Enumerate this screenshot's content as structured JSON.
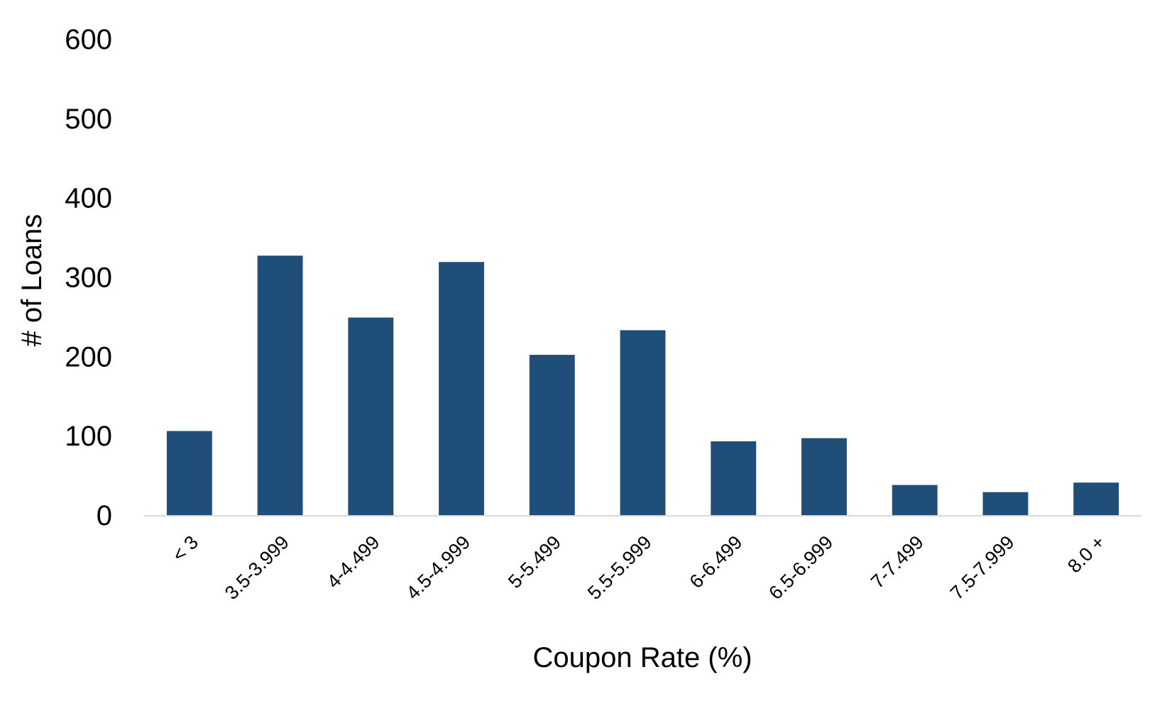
{
  "chart_data": {
    "type": "bar",
    "title": "",
    "xlabel": "Coupon Rate (%)",
    "ylabel": "# of Loans",
    "ylim": [
      0,
      600
    ],
    "yticks": [
      0,
      100,
      200,
      300,
      400,
      500,
      600
    ],
    "grid": false,
    "categories": [
      "< 3",
      "3.5-3.999",
      "4-4.499",
      "4.5-4.999",
      "5-5.499",
      "5.5-5.999",
      "6-6.499",
      "6.5-6.999",
      "7-7.499",
      "7.5-7.999",
      "8.0 +"
    ],
    "values": [
      106,
      327,
      249,
      319,
      202,
      233,
      93,
      97,
      38,
      29,
      41
    ],
    "bar_color": "#1F4E79",
    "axis_color": "#D9D9D9"
  }
}
